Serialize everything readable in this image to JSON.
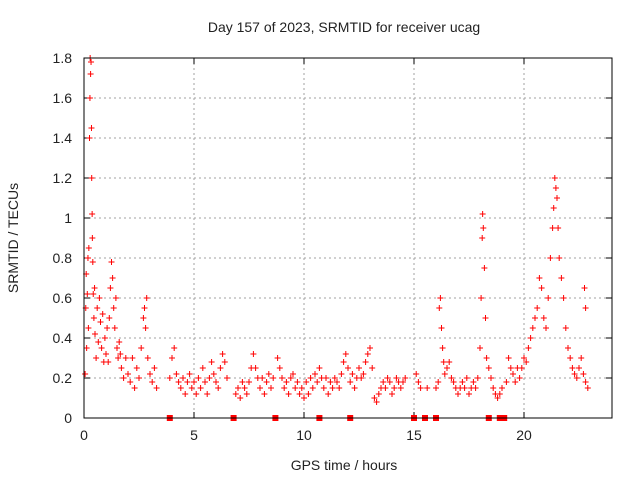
{
  "chart_data": {
    "type": "scatter",
    "title": "Day 157 of 2023, SRMTID for receiver ucag",
    "xlabel": "GPS time / hours",
    "ylabel": "SRMTID / TECUs",
    "xlim": [
      0,
      24
    ],
    "ylim": [
      0,
      1.8
    ],
    "xticks": [
      0,
      5,
      10,
      15,
      20
    ],
    "yticks": [
      0,
      0.2,
      0.4,
      0.6,
      0.8,
      1,
      1.2,
      1.4,
      1.6,
      1.8
    ],
    "grid": true,
    "marker": "+",
    "color": "#ff0000",
    "series": [
      {
        "name": "SRMTID",
        "points": [
          [
            0.05,
            0.22
          ],
          [
            0.08,
            0.55
          ],
          [
            0.1,
            0.72
          ],
          [
            0.12,
            0.35
          ],
          [
            0.15,
            0.62
          ],
          [
            0.18,
            0.8
          ],
          [
            0.2,
            0.45
          ],
          [
            0.22,
            0.85
          ],
          [
            0.25,
            1.4
          ],
          [
            0.27,
            1.6
          ],
          [
            0.28,
            1.8
          ],
          [
            0.3,
            1.72
          ],
          [
            0.32,
            1.78
          ],
          [
            0.34,
            1.45
          ],
          [
            0.35,
            1.2
          ],
          [
            0.37,
            1.02
          ],
          [
            0.38,
            0.9
          ],
          [
            0.4,
            0.78
          ],
          [
            0.42,
            0.62
          ],
          [
            0.45,
            0.5
          ],
          [
            0.48,
            0.65
          ],
          [
            0.5,
            0.42
          ],
          [
            0.55,
            0.3
          ],
          [
            0.6,
            0.55
          ],
          [
            0.65,
            0.38
          ],
          [
            0.7,
            0.6
          ],
          [
            0.75,
            0.48
          ],
          [
            0.8,
            0.35
          ],
          [
            0.85,
            0.52
          ],
          [
            0.9,
            0.28
          ],
          [
            0.95,
            0.4
          ],
          [
            1.0,
            0.32
          ],
          [
            1.05,
            0.45
          ],
          [
            1.1,
            0.28
          ],
          [
            1.15,
            0.5
          ],
          [
            1.2,
            0.65
          ],
          [
            1.25,
            0.78
          ],
          [
            1.3,
            0.7
          ],
          [
            1.35,
            0.55
          ],
          [
            1.4,
            0.45
          ],
          [
            1.45,
            0.6
          ],
          [
            1.5,
            0.35
          ],
          [
            1.55,
            0.3
          ],
          [
            1.6,
            0.38
          ],
          [
            1.65,
            0.32
          ],
          [
            1.7,
            0.25
          ],
          [
            1.8,
            0.2
          ],
          [
            1.9,
            0.3
          ],
          [
            2.0,
            0.22
          ],
          [
            2.1,
            0.18
          ],
          [
            2.2,
            0.3
          ],
          [
            2.3,
            0.15
          ],
          [
            2.4,
            0.25
          ],
          [
            2.5,
            0.2
          ],
          [
            2.6,
            0.35
          ],
          [
            2.7,
            0.5
          ],
          [
            2.75,
            0.55
          ],
          [
            2.8,
            0.45
          ],
          [
            2.85,
            0.6
          ],
          [
            2.9,
            0.3
          ],
          [
            3.0,
            0.22
          ],
          [
            3.1,
            0.18
          ],
          [
            3.2,
            0.25
          ],
          [
            3.3,
            0.15
          ],
          [
            3.9,
            0.2
          ],
          [
            4.0,
            0.3
          ],
          [
            4.1,
            0.35
          ],
          [
            4.2,
            0.22
          ],
          [
            4.3,
            0.18
          ],
          [
            4.4,
            0.15
          ],
          [
            4.5,
            0.2
          ],
          [
            4.6,
            0.12
          ],
          [
            4.7,
            0.18
          ],
          [
            4.8,
            0.22
          ],
          [
            4.9,
            0.15
          ],
          [
            5.0,
            0.18
          ],
          [
            5.1,
            0.12
          ],
          [
            5.2,
            0.2
          ],
          [
            5.3,
            0.15
          ],
          [
            5.4,
            0.25
          ],
          [
            5.5,
            0.18
          ],
          [
            5.6,
            0.12
          ],
          [
            5.7,
            0.2
          ],
          [
            5.8,
            0.28
          ],
          [
            5.9,
            0.22
          ],
          [
            6.0,
            0.18
          ],
          [
            6.1,
            0.15
          ],
          [
            6.2,
            0.25
          ],
          [
            6.3,
            0.32
          ],
          [
            6.4,
            0.28
          ],
          [
            6.5,
            0.2
          ],
          [
            6.9,
            0.12
          ],
          [
            7.0,
            0.15
          ],
          [
            7.1,
            0.1
          ],
          [
            7.2,
            0.18
          ],
          [
            7.3,
            0.15
          ],
          [
            7.4,
            0.12
          ],
          [
            7.5,
            0.18
          ],
          [
            7.6,
            0.25
          ],
          [
            7.7,
            0.32
          ],
          [
            7.8,
            0.25
          ],
          [
            7.9,
            0.2
          ],
          [
            8.0,
            0.15
          ],
          [
            8.1,
            0.2
          ],
          [
            8.2,
            0.12
          ],
          [
            8.3,
            0.18
          ],
          [
            8.4,
            0.22
          ],
          [
            8.5,
            0.15
          ],
          [
            8.6,
            0.2
          ],
          [
            8.8,
            0.3
          ],
          [
            8.9,
            0.25
          ],
          [
            9.0,
            0.2
          ],
          [
            9.1,
            0.15
          ],
          [
            9.2,
            0.18
          ],
          [
            9.3,
            0.12
          ],
          [
            9.4,
            0.2
          ],
          [
            9.5,
            0.22
          ],
          [
            9.6,
            0.15
          ],
          [
            9.7,
            0.18
          ],
          [
            9.8,
            0.12
          ],
          [
            9.9,
            0.15
          ],
          [
            10.0,
            0.1
          ],
          [
            10.1,
            0.18
          ],
          [
            10.2,
            0.12
          ],
          [
            10.3,
            0.2
          ],
          [
            10.4,
            0.15
          ],
          [
            10.5,
            0.22
          ],
          [
            10.6,
            0.18
          ],
          [
            10.7,
            0.25
          ],
          [
            10.8,
            0.2
          ],
          [
            10.9,
            0.15
          ],
          [
            11.0,
            0.2
          ],
          [
            11.1,
            0.12
          ],
          [
            11.2,
            0.18
          ],
          [
            11.3,
            0.15
          ],
          [
            11.4,
            0.2
          ],
          [
            11.5,
            0.18
          ],
          [
            11.6,
            0.15
          ],
          [
            11.7,
            0.22
          ],
          [
            11.8,
            0.28
          ],
          [
            11.9,
            0.32
          ],
          [
            12.0,
            0.25
          ],
          [
            12.1,
            0.18
          ],
          [
            12.2,
            0.22
          ],
          [
            12.3,
            0.15
          ],
          [
            12.4,
            0.2
          ],
          [
            12.5,
            0.25
          ],
          [
            12.6,
            0.2
          ],
          [
            12.7,
            0.22
          ],
          [
            12.8,
            0.28
          ],
          [
            12.9,
            0.32
          ],
          [
            13.0,
            0.35
          ],
          [
            13.1,
            0.25
          ],
          [
            13.2,
            0.1
          ],
          [
            13.3,
            0.08
          ],
          [
            13.4,
            0.12
          ],
          [
            13.5,
            0.15
          ],
          [
            13.6,
            0.18
          ],
          [
            13.7,
            0.15
          ],
          [
            13.8,
            0.2
          ],
          [
            13.9,
            0.18
          ],
          [
            14.0,
            0.12
          ],
          [
            14.1,
            0.15
          ],
          [
            14.2,
            0.2
          ],
          [
            14.3,
            0.18
          ],
          [
            14.4,
            0.15
          ],
          [
            14.5,
            0.18
          ],
          [
            14.6,
            0.2
          ],
          [
            15.1,
            0.22
          ],
          [
            15.2,
            0.18
          ],
          [
            15.3,
            0.15
          ],
          [
            15.6,
            0.15
          ],
          [
            16.0,
            0.15
          ],
          [
            16.1,
            0.18
          ],
          [
            16.15,
            0.55
          ],
          [
            16.2,
            0.6
          ],
          [
            16.25,
            0.45
          ],
          [
            16.3,
            0.35
          ],
          [
            16.35,
            0.28
          ],
          [
            16.4,
            0.22
          ],
          [
            16.5,
            0.25
          ],
          [
            16.6,
            0.28
          ],
          [
            16.7,
            0.2
          ],
          [
            16.8,
            0.18
          ],
          [
            16.9,
            0.15
          ],
          [
            17.0,
            0.12
          ],
          [
            17.1,
            0.15
          ],
          [
            17.2,
            0.18
          ],
          [
            17.3,
            0.15
          ],
          [
            17.4,
            0.2
          ],
          [
            17.5,
            0.12
          ],
          [
            17.6,
            0.15
          ],
          [
            17.7,
            0.18
          ],
          [
            17.8,
            0.15
          ],
          [
            17.9,
            0.2
          ],
          [
            18.0,
            0.35
          ],
          [
            18.05,
            0.6
          ],
          [
            18.1,
            0.9
          ],
          [
            18.12,
            1.02
          ],
          [
            18.15,
            0.95
          ],
          [
            18.2,
            0.75
          ],
          [
            18.25,
            0.5
          ],
          [
            18.3,
            0.3
          ],
          [
            18.4,
            0.25
          ],
          [
            18.5,
            0.2
          ],
          [
            18.6,
            0.15
          ],
          [
            18.7,
            0.12
          ],
          [
            18.8,
            0.1
          ],
          [
            18.9,
            0.12
          ],
          [
            19.0,
            0.15
          ],
          [
            19.2,
            0.18
          ],
          [
            19.3,
            0.3
          ],
          [
            19.4,
            0.25
          ],
          [
            19.5,
            0.22
          ],
          [
            19.6,
            0.18
          ],
          [
            19.7,
            0.25
          ],
          [
            19.8,
            0.2
          ],
          [
            19.9,
            0.25
          ],
          [
            20.0,
            0.3
          ],
          [
            20.1,
            0.28
          ],
          [
            20.2,
            0.35
          ],
          [
            20.3,
            0.4
          ],
          [
            20.4,
            0.45
          ],
          [
            20.5,
            0.5
          ],
          [
            20.6,
            0.55
          ],
          [
            20.7,
            0.7
          ],
          [
            20.8,
            0.65
          ],
          [
            20.9,
            0.5
          ],
          [
            21.0,
            0.45
          ],
          [
            21.1,
            0.6
          ],
          [
            21.2,
            0.8
          ],
          [
            21.3,
            0.95
          ],
          [
            21.35,
            1.05
          ],
          [
            21.4,
            1.2
          ],
          [
            21.45,
            1.15
          ],
          [
            21.5,
            1.1
          ],
          [
            21.55,
            0.95
          ],
          [
            21.6,
            0.8
          ],
          [
            21.7,
            0.7
          ],
          [
            21.8,
            0.6
          ],
          [
            21.9,
            0.45
          ],
          [
            22.0,
            0.35
          ],
          [
            22.1,
            0.3
          ],
          [
            22.2,
            0.25
          ],
          [
            22.3,
            0.22
          ],
          [
            22.4,
            0.2
          ],
          [
            22.5,
            0.25
          ],
          [
            22.6,
            0.3
          ],
          [
            22.7,
            0.22
          ],
          [
            22.8,
            0.18
          ],
          [
            22.9,
            0.15
          ],
          [
            22.75,
            0.65
          ],
          [
            22.8,
            0.55
          ]
        ]
      }
    ],
    "baseline_markers_x": [
      3.9,
      6.8,
      8.7,
      10.7,
      12.1,
      15.0,
      15.5,
      16.0,
      18.4,
      18.9,
      19.0,
      19.1
    ]
  }
}
